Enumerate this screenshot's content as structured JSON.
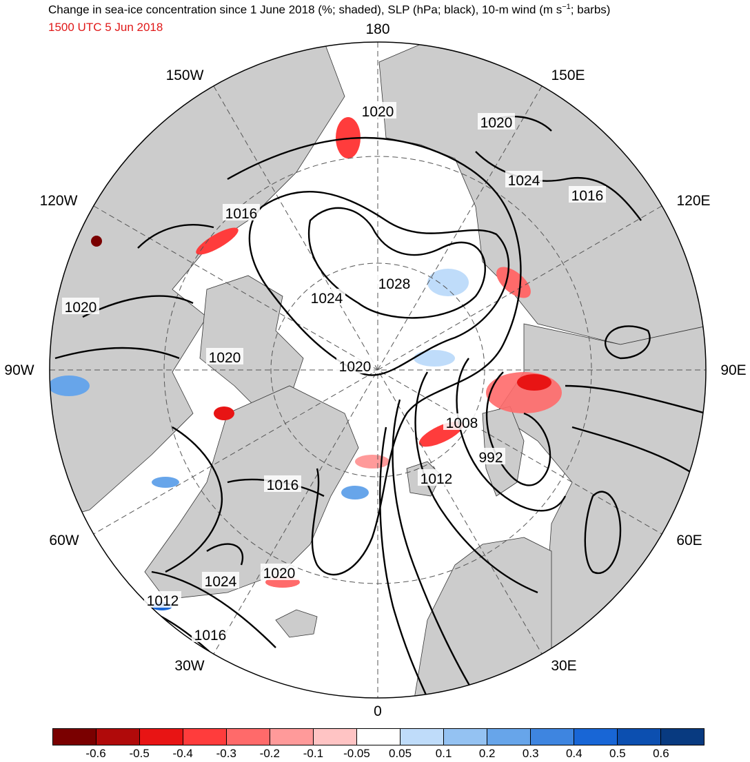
{
  "header": {
    "title": "Change in sea-ice concentration since 1 June 2018 (%; shaded), SLP (hPa; black), 10-m wind (m s",
    "title_sup": "−1",
    "title_tail": "; barbs)",
    "valid_time": "1500 UTC 5 Jun 2018"
  },
  "longitude_labels": {
    "top": "180",
    "bottom": "0",
    "left": "90W",
    "right": "90E",
    "upper_left_1": "150W",
    "upper_left_2": "120W",
    "upper_right_1": "150E",
    "upper_right_2": "120E",
    "lower_left_1": "60W",
    "lower_left_2": "30W",
    "lower_right_1": "60E",
    "lower_right_2": "30E"
  },
  "contour_labels": [
    "1020",
    "1020",
    "1024",
    "1016",
    "1016",
    "1020",
    "1028",
    "1024",
    "1020",
    "1020",
    "1008",
    "992",
    "1012",
    "1016",
    "1020",
    "1024",
    "1012",
    "1016"
  ],
  "colorbar": {
    "colors": [
      "#7a0000",
      "#b00a0a",
      "#e81414",
      "#ff3c3c",
      "#ff6a6a",
      "#ff9a9a",
      "#ffc4c4",
      "#ffffff",
      "#bfdcfa",
      "#94c2f2",
      "#67a5ea",
      "#3e85e0",
      "#1866d6",
      "#0c4fb0",
      "#083a80"
    ],
    "labels": [
      "-0.6",
      "-0.5",
      "-0.4",
      "-0.3",
      "-0.2",
      "-0.1",
      "-0.05",
      "0.05",
      "0.1",
      "0.2",
      "0.3",
      "0.4",
      "0.5",
      "0.6"
    ]
  },
  "colors": {
    "land": "#cccccc",
    "ocean": "#ffffff",
    "isobar": "#000000",
    "ice_decrease": "#ff3c3c",
    "ice_increase": "#67a5ea"
  }
}
